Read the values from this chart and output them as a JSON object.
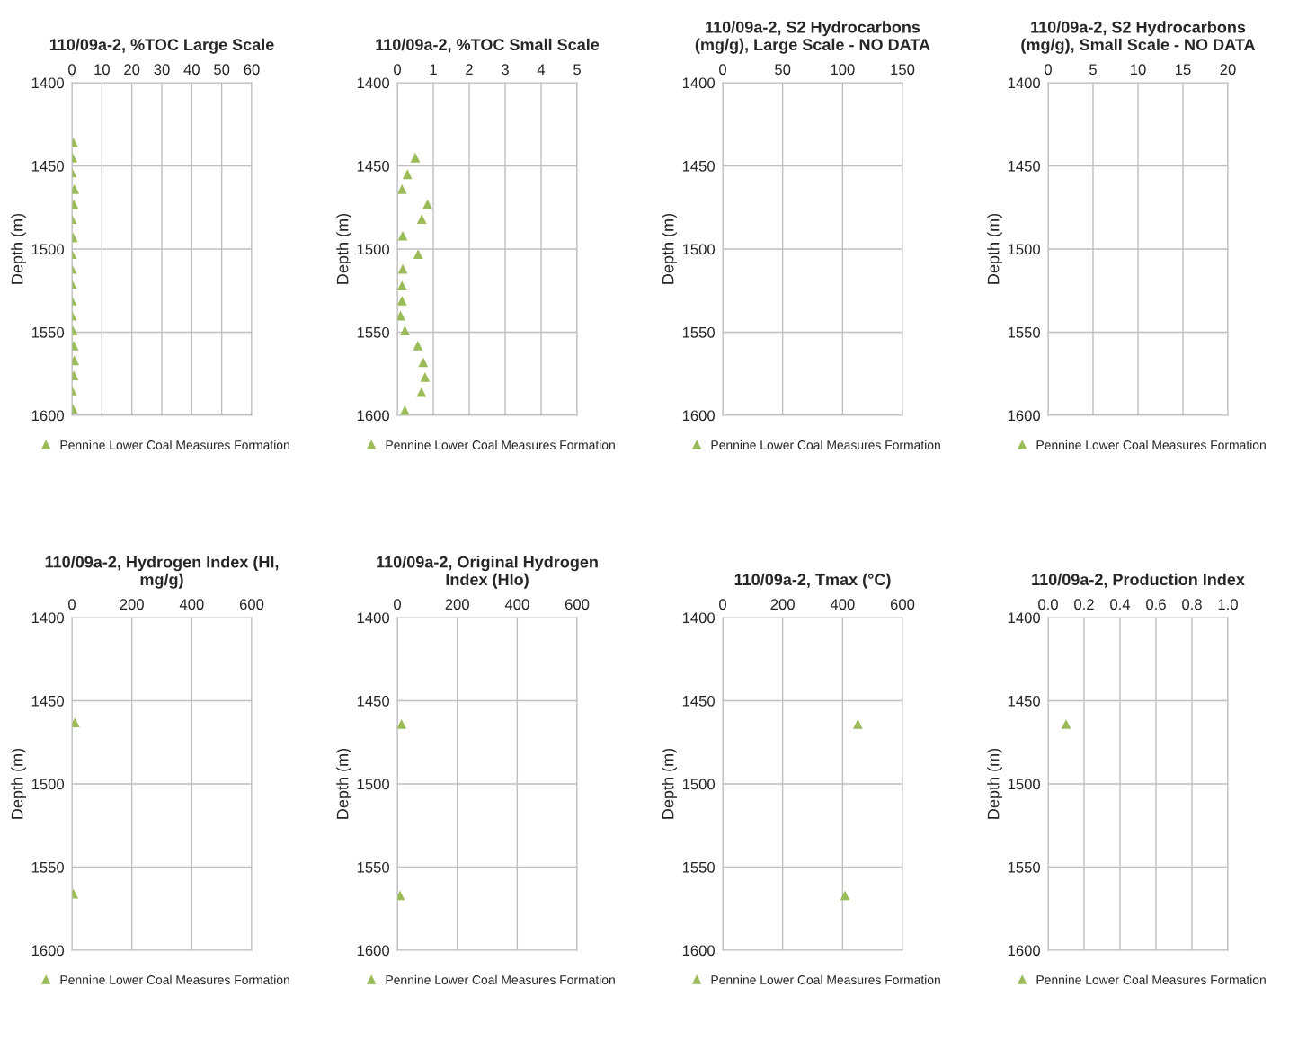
{
  "chart_data": [
    {
      "type": "scatter",
      "title": "110/09a-2, %TOC Large Scale",
      "ylabel": "Depth (m)",
      "xlim": [
        0,
        60
      ],
      "xticks": [
        0,
        10,
        20,
        30,
        40,
        50,
        60
      ],
      "ylim": [
        1600,
        1400
      ],
      "yticks": [
        1400,
        1450,
        1500,
        1550,
        1600
      ],
      "grid": true,
      "legend": "bottom",
      "marker": "triangle",
      "series": [
        {
          "name": "Pennine Lower Coal Measures Formation",
          "color": "#9bbb59",
          "x": [
            0.5,
            0.2,
            0,
            0.8,
            0.6,
            0,
            0.4,
            0,
            0,
            0,
            0,
            0,
            0.3,
            0.6,
            0.8,
            0.6,
            0,
            0.3
          ],
          "values": [
            1436,
            1445,
            1454,
            1464,
            1473,
            1482,
            1493,
            1503,
            1512,
            1521,
            1531,
            1540,
            1549,
            1558,
            1567,
            1576,
            1585,
            1596
          ]
        }
      ]
    },
    {
      "type": "scatter",
      "title": "110/09a-2, %TOC Small Scale",
      "ylabel": "Depth (m)",
      "xlim": [
        0,
        5
      ],
      "xticks": [
        0,
        1,
        2,
        3,
        4,
        5
      ],
      "ylim": [
        1600,
        1400
      ],
      "yticks": [
        1400,
        1450,
        1500,
        1550,
        1600
      ],
      "grid": true,
      "legend": "bottom",
      "marker": "triangle",
      "series": [
        {
          "name": "Pennine Lower Coal Measures Formation",
          "color": "#9bbb59",
          "x": [
            0.5,
            0.28,
            0.13,
            0.84,
            0.68,
            0.15,
            0.58,
            0.15,
            0.13,
            0.13,
            0.09,
            0.21,
            0.57,
            0.72,
            0.77,
            0.67,
            0.21
          ],
          "values": [
            1445,
            1455,
            1464,
            1473,
            1482,
            1492,
            1503,
            1512,
            1522,
            1531,
            1540,
            1549,
            1558,
            1568,
            1577,
            1586,
            1597
          ]
        }
      ]
    },
    {
      "type": "scatter",
      "title": "110/09a-2, S2 Hydrocarbons (mg/g), Large Scale - NO DATA",
      "ylabel": "Depth (m)",
      "xlim": [
        0,
        150
      ],
      "xticks": [
        0,
        50,
        100,
        150
      ],
      "ylim": [
        1600,
        1400
      ],
      "yticks": [
        1400,
        1450,
        1500,
        1550,
        1600
      ],
      "grid": true,
      "legend": "bottom",
      "marker": "triangle",
      "series": [
        {
          "name": "Pennine Lower Coal Measures Formation",
          "color": "#9bbb59",
          "x": [
            null
          ],
          "values": [
            null
          ]
        }
      ]
    },
    {
      "type": "scatter",
      "title": "110/09a-2, S2 Hydrocarbons (mg/g), Small Scale - NO DATA",
      "ylabel": "Depth (m)",
      "xlim": [
        0,
        20
      ],
      "xticks": [
        0,
        5,
        10,
        15,
        20
      ],
      "ylim": [
        1600,
        1400
      ],
      "yticks": [
        1400,
        1450,
        1500,
        1550,
        1600
      ],
      "grid": true,
      "legend": "bottom",
      "marker": "triangle",
      "series": [
        {
          "name": "Pennine Lower Coal Measures Formation",
          "color": "#9bbb59",
          "x": [
            null
          ],
          "values": [
            null
          ]
        }
      ]
    },
    {
      "type": "scatter",
      "title": "110/09a-2, Hydrogen Index (HI, mg/g)",
      "ylabel": "Depth (m)",
      "xlim": [
        0,
        600
      ],
      "xticks": [
        0,
        200,
        400,
        600
      ],
      "ylim": [
        1600,
        1400
      ],
      "yticks": [
        1400,
        1450,
        1500,
        1550,
        1600
      ],
      "grid": true,
      "legend": "bottom",
      "marker": "triangle",
      "series": [
        {
          "name": "Pennine Lower Coal Measures Formation",
          "color": "#9bbb59",
          "x": [
            10,
            5
          ],
          "values": [
            1463,
            1566
          ]
        }
      ]
    },
    {
      "type": "scatter",
      "title": "110/09a-2, Original Hydrogen Index (HIo)",
      "ylabel": "Depth (m)",
      "xlim": [
        0,
        600
      ],
      "xticks": [
        0,
        200,
        400,
        600
      ],
      "ylim": [
        1600,
        1400
      ],
      "yticks": [
        1400,
        1450,
        1500,
        1550,
        1600
      ],
      "grid": true,
      "legend": "bottom",
      "marker": "triangle",
      "series": [
        {
          "name": "Pennine Lower Coal Measures Formation",
          "color": "#9bbb59",
          "x": [
            14,
            9
          ],
          "values": [
            1464,
            1567
          ]
        }
      ]
    },
    {
      "type": "scatter",
      "title": "110/09a-2, Tmax (°C)",
      "ylabel": "Depth (m)",
      "xlim": [
        0,
        600
      ],
      "xticks": [
        0,
        200,
        400,
        600
      ],
      "ylim": [
        1600,
        1400
      ],
      "yticks": [
        1400,
        1450,
        1500,
        1550,
        1600
      ],
      "grid": true,
      "legend": "bottom",
      "marker": "triangle",
      "series": [
        {
          "name": "Pennine Lower Coal Measures Formation",
          "color": "#9bbb59",
          "x": [
            451,
            408
          ],
          "values": [
            1464,
            1567
          ]
        }
      ]
    },
    {
      "type": "scatter",
      "title": "110/09a-2, Production Index",
      "ylabel": "Depth (m)",
      "xlim": [
        0,
        1
      ],
      "xticks": [
        {
          "value": 0,
          "label": "0.0"
        },
        {
          "value": 0.2,
          "label": "0.2"
        },
        {
          "value": 0.4,
          "label": "0.4"
        },
        {
          "value": 0.6,
          "label": "0.6"
        },
        {
          "value": 0.8,
          "label": "0.8"
        },
        {
          "value": 1,
          "label": "1.0"
        }
      ],
      "ylim": [
        1600,
        1400
      ],
      "yticks": [
        1400,
        1450,
        1500,
        1550,
        1600
      ],
      "grid": true,
      "legend": "bottom",
      "marker": "triangle",
      "series": [
        {
          "name": "Pennine Lower Coal Measures Formation",
          "color": "#9bbb59",
          "x": [
            0.1
          ],
          "values": [
            1464
          ]
        }
      ]
    }
  ]
}
